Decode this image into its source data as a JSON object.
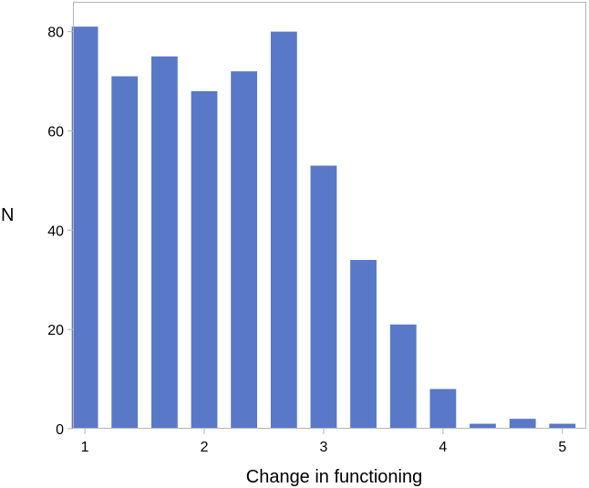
{
  "chart_data": {
    "type": "bar",
    "title": "",
    "xlabel": "Change in functioning",
    "ylabel": "N",
    "x_ticks": [
      1,
      2,
      3,
      4,
      5
    ],
    "y_ticks": [
      0,
      20,
      40,
      60,
      80
    ],
    "xlim": [
      0.9,
      5.2
    ],
    "ylim": [
      0,
      86
    ],
    "bar_width": 0.22,
    "grid": false,
    "legend": "none",
    "colors": {
      "bar": "#5A78C8",
      "frame": "#B5B5B5",
      "text": "#000000"
    },
    "bars": [
      {
        "x": 1.0,
        "value": 81
      },
      {
        "x": 1.333,
        "value": 71
      },
      {
        "x": 1.667,
        "value": 75
      },
      {
        "x": 2.0,
        "value": 68
      },
      {
        "x": 2.333,
        "value": 72
      },
      {
        "x": 2.667,
        "value": 80
      },
      {
        "x": 3.0,
        "value": 53
      },
      {
        "x": 3.333,
        "value": 34
      },
      {
        "x": 3.667,
        "value": 21
      },
      {
        "x": 4.0,
        "value": 8
      },
      {
        "x": 4.333,
        "value": 1
      },
      {
        "x": 4.667,
        "value": 2
      },
      {
        "x": 5.0,
        "value": 1
      }
    ]
  }
}
